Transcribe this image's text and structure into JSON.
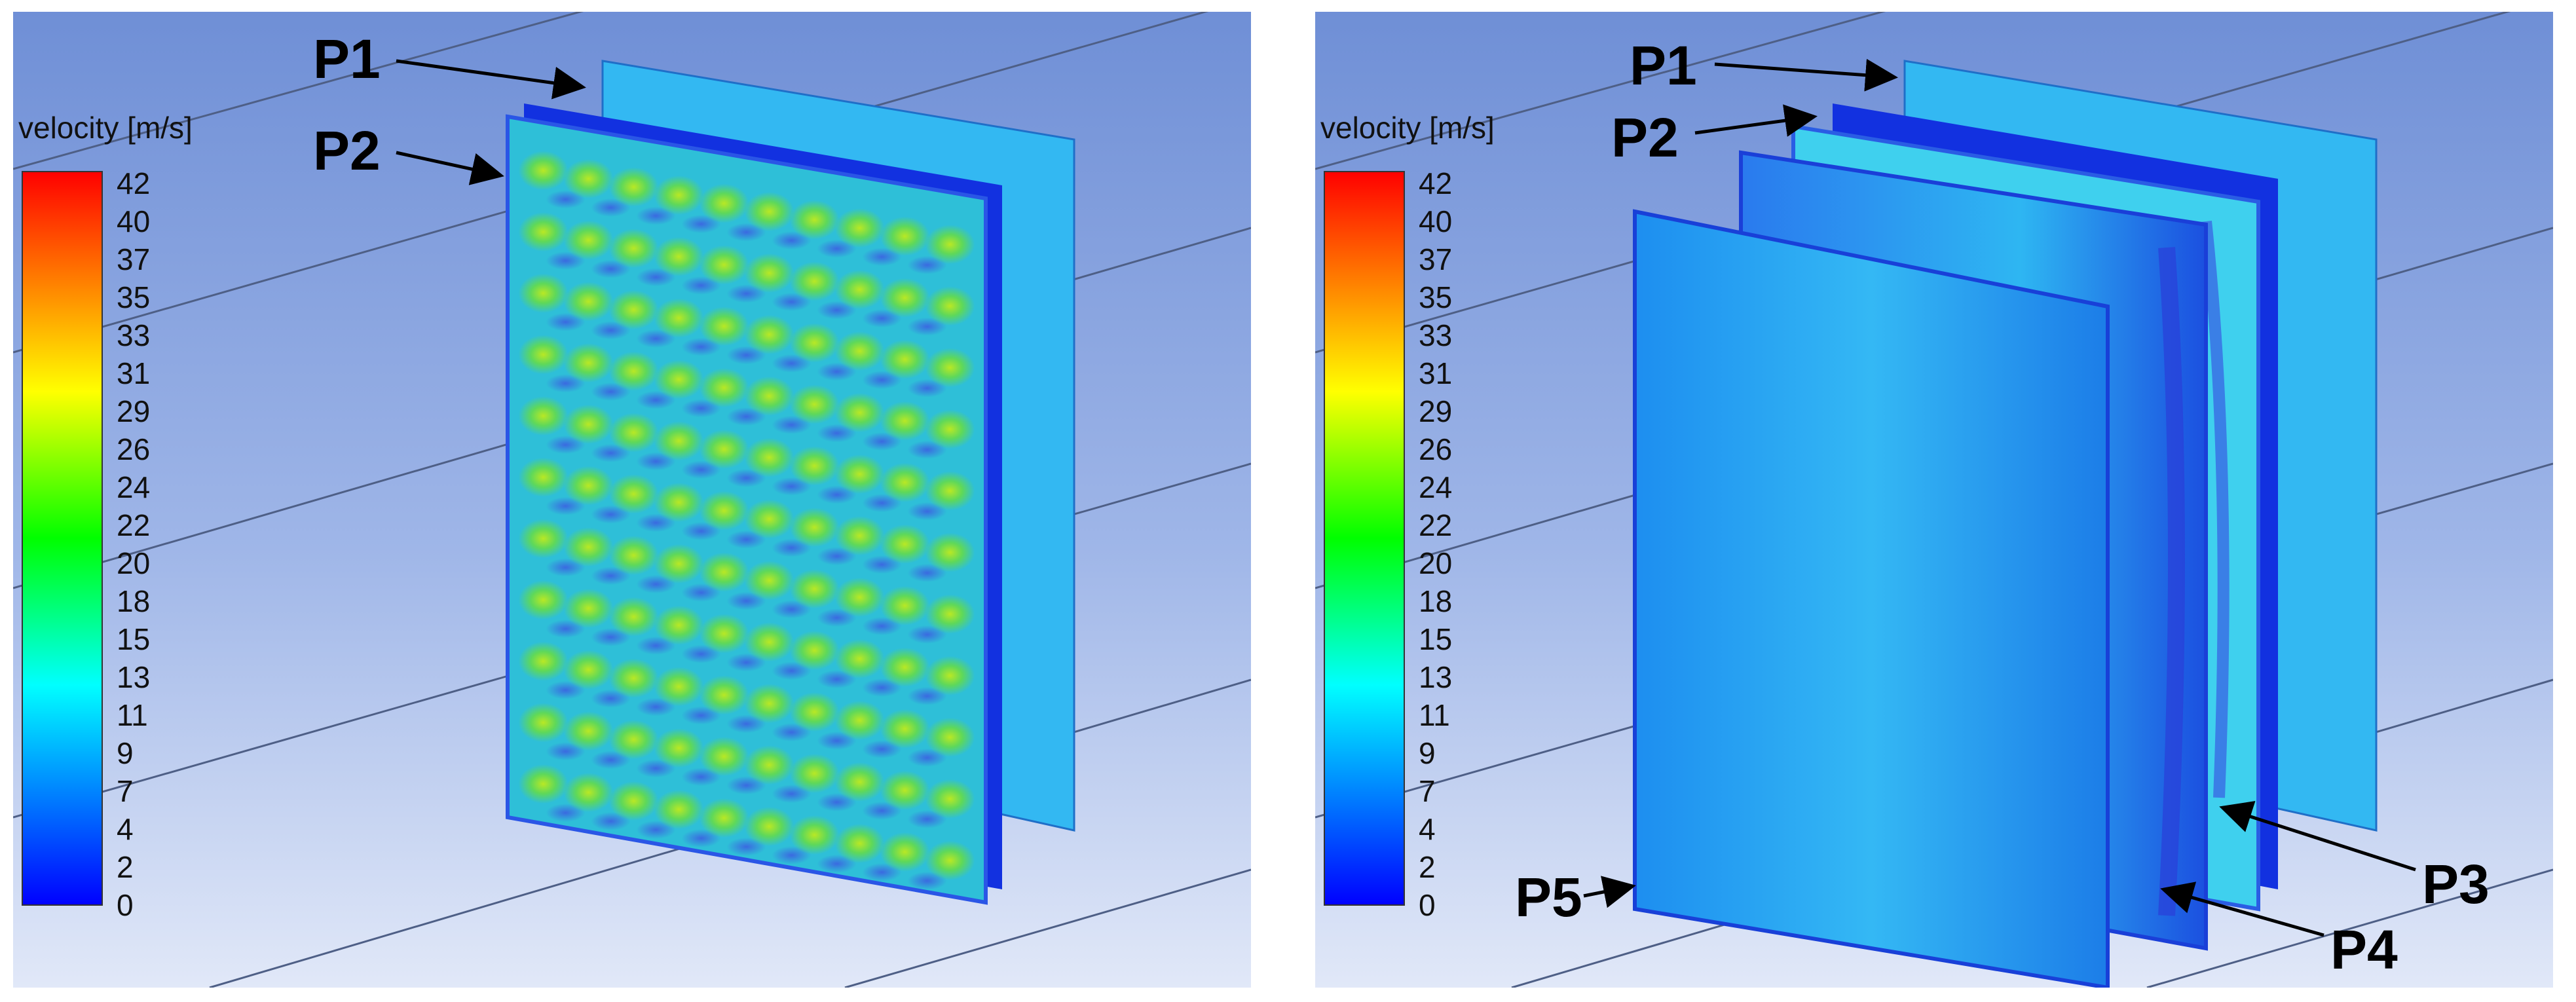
{
  "legend": {
    "title": "velocity [m/s]",
    "ticks": [
      "42",
      "40",
      "37",
      "35",
      "33",
      "31",
      "29",
      "26",
      "24",
      "22",
      "20",
      "18",
      "15",
      "13",
      "11",
      "9",
      "7",
      "4",
      "2",
      "0"
    ]
  },
  "panels": {
    "left": {
      "labels": [
        "P1",
        "P2"
      ]
    },
    "right": {
      "labels": [
        "P1",
        "P2",
        "P3",
        "P4",
        "P5"
      ]
    }
  }
}
